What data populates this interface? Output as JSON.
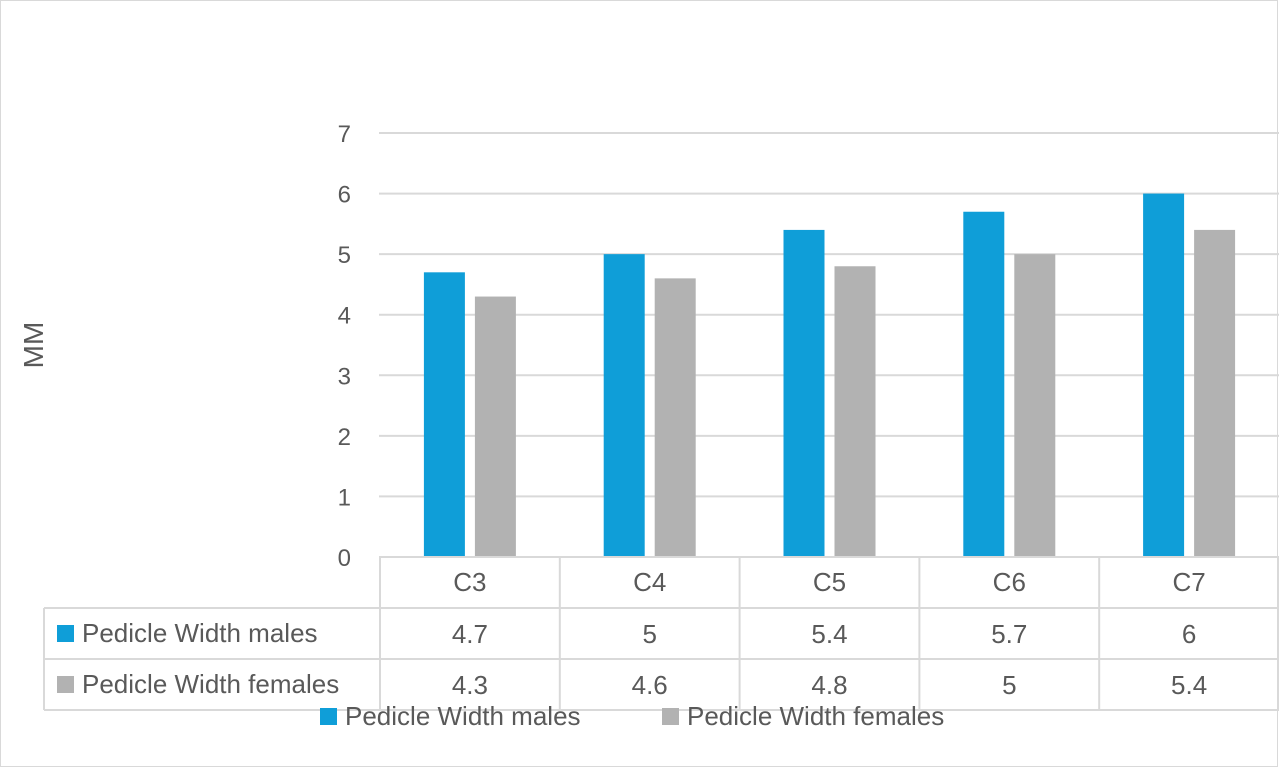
{
  "chart_data": {
    "type": "bar",
    "categories": [
      "C3",
      "C4",
      "C5",
      "C6",
      "C7"
    ],
    "series": [
      {
        "name": "Pedicle Width males",
        "color": "#0f9ed8",
        "values": [
          4.7,
          5,
          5.4,
          5.7,
          6
        ],
        "table_values": [
          "4.7",
          "5",
          "5.4",
          "5.7",
          "6"
        ]
      },
      {
        "name": "Pedicle Width females",
        "color": "#b2b2b2",
        "values": [
          4.3,
          4.6,
          4.8,
          5,
          5.4
        ],
        "table_values": [
          "4.3",
          "4.6",
          "4.8",
          "5",
          "5.4"
        ]
      }
    ],
    "ylabel": "MM",
    "ylim": [
      0,
      7
    ],
    "yticks": [
      0,
      1,
      2,
      3,
      4,
      5,
      6,
      7
    ],
    "grid": true,
    "data_table": true,
    "legend_position": "bottom"
  }
}
